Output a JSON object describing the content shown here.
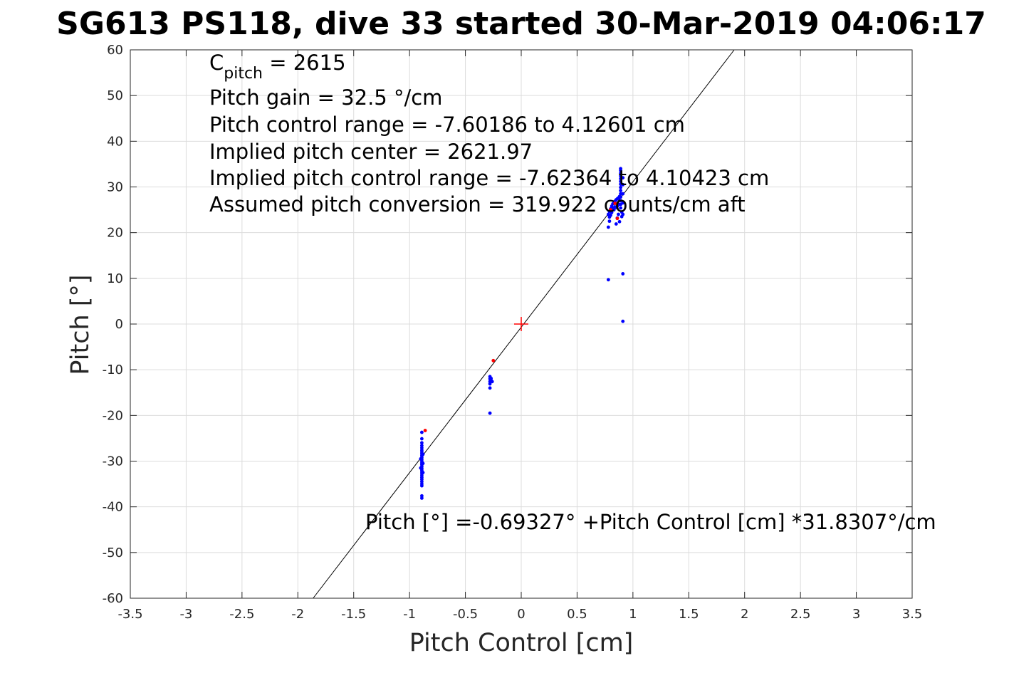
{
  "chart_data": {
    "type": "scatter",
    "title": "SG613 PS118, dive 33 started 30-Mar-2019 04:06:17",
    "xlabel": "Pitch Control [cm]",
    "ylabel": "Pitch [°]",
    "xlim": [
      -3.5,
      3.5
    ],
    "ylim": [
      -60,
      60
    ],
    "xticks": [
      -3.5,
      -3,
      -2.5,
      -2,
      -1.5,
      -1,
      -0.5,
      0,
      0.5,
      1,
      1.5,
      2,
      2.5,
      3,
      3.5
    ],
    "xtick_labels": [
      "-3.5",
      "-3",
      "-2.5",
      "-2",
      "-1.5",
      "-1",
      "-0.5",
      "0",
      "0.5",
      "1",
      "1.5",
      "2",
      "2.5",
      "3",
      "3.5"
    ],
    "yticks": [
      -60,
      -50,
      -40,
      -30,
      -20,
      -10,
      0,
      10,
      20,
      30,
      40,
      50,
      60
    ],
    "ytick_labels": [
      "-60",
      "-50",
      "-40",
      "-30",
      "-20",
      "-10",
      "0",
      "10",
      "20",
      "30",
      "40",
      "50",
      "60"
    ],
    "grid": true,
    "annotations": {
      "cpitch_symbol": "C",
      "cpitch_sub": "pitch",
      "cpitch_value": " = 2615",
      "lines": [
        "Pitch gain = 32.5 °/cm",
        "Pitch control range = -7.60186 to 4.12601 cm",
        "Implied pitch center = 2621.97",
        "Implied pitch control range = -7.62364 to 4.10423 cm",
        "Assumed pitch conversion = 319.922 counts/cm aft"
      ],
      "fit_equation": "Pitch [°] =-0.69327° +Pitch Control [cm] *31.8307°/cm"
    },
    "fit_line": {
      "intercept": -0.69327,
      "slope": 31.8307,
      "color": "#000000"
    },
    "center_marker": {
      "x": 0,
      "y": 0,
      "color": "#ff0000"
    },
    "series": [
      {
        "color": "#0000ff",
        "points": [
          [
            -0.89,
            -23.7
          ],
          [
            -0.89,
            -25.1
          ],
          [
            -0.89,
            -26.0
          ],
          [
            -0.89,
            -26.6
          ],
          [
            -0.89,
            -27.1
          ],
          [
            -0.89,
            -27.6
          ],
          [
            -0.89,
            -28.0
          ],
          [
            -0.89,
            -28.4
          ],
          [
            -0.89,
            -28.8
          ],
          [
            -0.89,
            -29.2
          ],
          [
            -0.89,
            -29.6
          ],
          [
            -0.89,
            -30.0
          ],
          [
            -0.89,
            -30.4
          ],
          [
            -0.89,
            -30.8
          ],
          [
            -0.89,
            -31.2
          ],
          [
            -0.89,
            -31.6
          ],
          [
            -0.89,
            -32.0
          ],
          [
            -0.89,
            -32.4
          ],
          [
            -0.89,
            -32.8
          ],
          [
            -0.89,
            -33.2
          ],
          [
            -0.89,
            -33.6
          ],
          [
            -0.89,
            -34.0
          ],
          [
            -0.89,
            -34.5
          ],
          [
            -0.89,
            -35.0
          ],
          [
            -0.89,
            -35.4
          ],
          [
            -0.88,
            -28.5
          ],
          [
            -0.88,
            -30.5
          ],
          [
            -0.88,
            -32.5
          ],
          [
            -0.9,
            -29.5
          ],
          [
            -0.9,
            -31.5
          ],
          [
            -0.89,
            -37.6
          ],
          [
            -0.89,
            -38.1
          ],
          [
            -0.28,
            -11.5
          ],
          [
            -0.28,
            -12.0
          ],
          [
            -0.28,
            -12.6
          ],
          [
            -0.28,
            -13.1
          ],
          [
            -0.27,
            -12.3
          ],
          [
            -0.27,
            -11.9
          ],
          [
            -0.26,
            -12.6
          ],
          [
            -0.28,
            -14.0
          ],
          [
            -0.28,
            -19.5
          ],
          [
            0.78,
            9.7
          ],
          [
            0.91,
            11.0
          ],
          [
            0.91,
            0.6
          ],
          [
            0.78,
            21.2
          ],
          [
            0.79,
            22.5
          ],
          [
            0.79,
            23.4
          ],
          [
            0.78,
            24.0
          ],
          [
            0.79,
            24.6
          ],
          [
            0.8,
            25.2
          ],
          [
            0.81,
            25.8
          ],
          [
            0.82,
            26.3
          ],
          [
            0.83,
            26.6
          ],
          [
            0.84,
            26.9
          ],
          [
            0.85,
            27.2
          ],
          [
            0.86,
            27.4
          ],
          [
            0.87,
            27.6
          ],
          [
            0.88,
            27.9
          ],
          [
            0.85,
            25.5
          ],
          [
            0.83,
            25.0
          ],
          [
            0.81,
            24.4
          ],
          [
            0.8,
            23.8
          ],
          [
            0.87,
            24.0
          ],
          [
            0.86,
            23.2
          ],
          [
            0.88,
            22.4
          ],
          [
            0.85,
            21.9
          ],
          [
            0.9,
            23.5
          ],
          [
            0.9,
            24.5
          ],
          [
            0.89,
            25.4
          ],
          [
            0.89,
            26.2
          ],
          [
            0.89,
            27.0
          ],
          [
            0.89,
            27.8
          ],
          [
            0.89,
            28.5
          ],
          [
            0.89,
            29.2
          ],
          [
            0.89,
            29.9
          ],
          [
            0.89,
            30.6
          ],
          [
            0.89,
            31.2
          ],
          [
            0.89,
            31.8
          ],
          [
            0.89,
            32.4
          ],
          [
            0.89,
            33.0
          ],
          [
            0.89,
            33.6
          ],
          [
            0.89,
            34.0
          ],
          [
            0.91,
            32.0
          ],
          [
            0.91,
            30.5
          ],
          [
            0.91,
            28.5
          ],
          [
            0.91,
            26.5
          ],
          [
            0.91,
            24.0
          ],
          [
            0.87,
            26.2
          ],
          [
            0.86,
            25.8
          ],
          [
            0.84,
            25.6
          ],
          [
            0.82,
            25.4
          ],
          [
            0.8,
            24.9
          ]
        ]
      },
      {
        "color": "#ff0000",
        "points": [
          [
            -0.86,
            -23.3
          ],
          [
            -0.25,
            -8.0
          ],
          [
            0.86,
            23.1
          ],
          [
            0.8,
            25.0
          ],
          [
            0.84,
            26.4
          ]
        ]
      }
    ]
  }
}
